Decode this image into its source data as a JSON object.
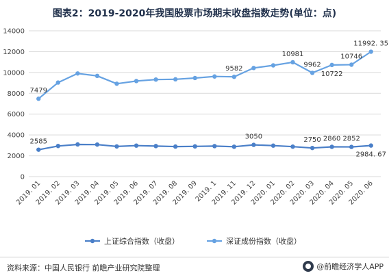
{
  "title": "图表2：2019-2020年我国股票市场期末收盘指数走势(单位：点)",
  "source": "资料来源：中国人民银行 前瞻产业研究院整理",
  "brand": "@前瞻经济学人APP",
  "colors": {
    "shanghai": "#4a7fc8",
    "shenzhen": "#66a2e2",
    "grid": "#d9d9d9"
  },
  "chart_data": {
    "type": "line",
    "categories": [
      "2019. 01",
      "2019. 02",
      "2019. 03",
      "2019. 04",
      "2019. 05",
      "2019. 06",
      "2019. 07",
      "2019. 08",
      "2019. 09",
      "2019. 1",
      "2019. 11",
      "2019. 12",
      "2020. 01",
      "2020. 02",
      "2020. 03",
      "2020. 04",
      "2020. 05",
      "2020. 06"
    ],
    "ylim": [
      0,
      14000
    ],
    "yticks": [
      0,
      2000,
      4000,
      6000,
      8000,
      10000,
      12000,
      14000
    ],
    "grid": true,
    "legend": "bottom",
    "series": [
      {
        "name": "上证综合指数（收盘）",
        "values": [
          2585,
          2941,
          3091,
          3078,
          2898,
          2979,
          2933,
          2886,
          2905,
          2929,
          2872,
          3050,
          2977,
          2880,
          2750,
          2860,
          2852,
          2984.67
        ],
        "labels": [
          {
            "index": 0,
            "text": "2585",
            "pos": "above"
          },
          {
            "index": 11,
            "text": "3050",
            "pos": "above"
          },
          {
            "index": 14,
            "text": "2750",
            "pos": "above"
          },
          {
            "index": 15,
            "text": "2860",
            "pos": "above"
          },
          {
            "index": 16,
            "text": "2852",
            "pos": "above"
          },
          {
            "index": 17,
            "text": "2984. 67",
            "pos": "below"
          }
        ]
      },
      {
        "name": "深证成份指数（收盘）",
        "values": [
          7479,
          9034,
          9906,
          9675,
          8920,
          9178,
          9321,
          9344,
          9467,
          9613,
          9582,
          10431,
          10681,
          10981,
          9962,
          10722,
          10746,
          11992.35
        ],
        "labels": [
          {
            "index": 0,
            "text": "7479",
            "pos": "above"
          },
          {
            "index": 10,
            "text": "9582",
            "pos": "above"
          },
          {
            "index": 13,
            "text": "10981",
            "pos": "above"
          },
          {
            "index": 14,
            "text": "9962",
            "pos": "above"
          },
          {
            "index": 15,
            "text": "10722",
            "pos": "below"
          },
          {
            "index": 16,
            "text": "10746",
            "pos": "above"
          },
          {
            "index": 17,
            "text": "11992. 35",
            "pos": "above"
          }
        ]
      }
    ]
  }
}
